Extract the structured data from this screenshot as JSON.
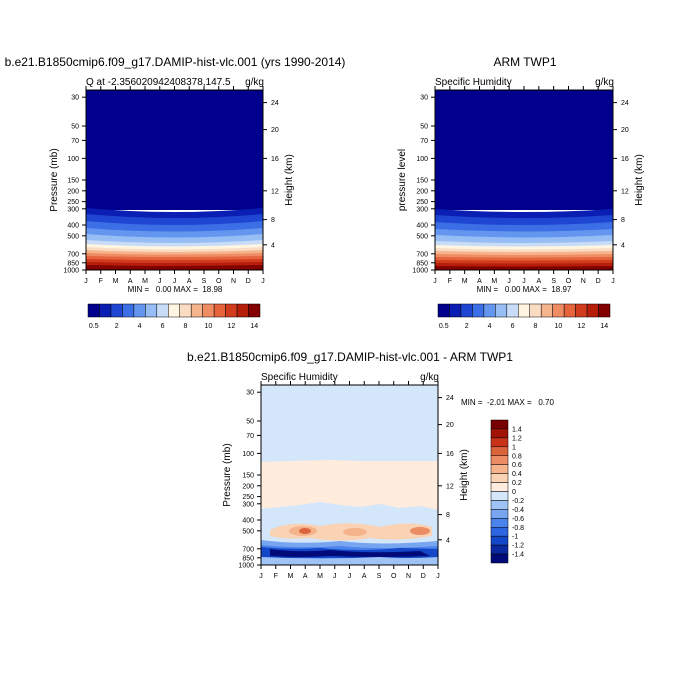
{
  "colors": {
    "abs": [
      "#00008c",
      "#0a1eb4",
      "#1e46d2",
      "#3c6ee6",
      "#6496f0",
      "#96bef5",
      "#c8dcf8",
      "#fff5e1",
      "#fadcc3",
      "#f5b48c",
      "#f08c64",
      "#e6643c",
      "#d23c1e",
      "#b41e0a",
      "#820000"
    ],
    "diff": [
      "#000a78",
      "#0a28a0",
      "#1446c8",
      "#2d64e1",
      "#4b82eb",
      "#78a5f0",
      "#a0c3f5",
      "#d4e6fa",
      "#ffecdc",
      "#fad2b4",
      "#f5b48c",
      "#eb8c64",
      "#dc643c",
      "#c83219",
      "#a01405",
      "#780000"
    ]
  },
  "chart_data": [
    {
      "type": "heatmap",
      "title": "b.e21.B1850cmip6.f09_g17.DAMIP-hist-vlc.001 (yrs 1990-2014)",
      "left_label": "Q at -2.356020942408378,147.5",
      "right_label": "g/kg",
      "xlabel": "",
      "ylabel": "Pressure (mb)",
      "y2label": "Height (km)",
      "x_ticks": [
        "J",
        "F",
        "M",
        "A",
        "M",
        "J",
        "J",
        "A",
        "S",
        "O",
        "N",
        "D",
        "J"
      ],
      "y_ticks": [
        "30",
        "50",
        "70",
        "100",
        "150",
        "200",
        "250",
        "300",
        "400",
        "500",
        "700",
        "850",
        "1000"
      ],
      "y2_ticks": [
        "24",
        "20",
        "16",
        "12",
        "8",
        "4"
      ],
      "stats": "MIN =   0.00 MAX =  18.98",
      "colorbar_labels": [
        "0.5",
        "2",
        "4",
        "6",
        "8",
        "10",
        "12",
        "14"
      ],
      "colorbar_levels": [
        0.5,
        1,
        2,
        3,
        4,
        5,
        6,
        7,
        8,
        9,
        10,
        11,
        12,
        13,
        14
      ],
      "data": {
        "pressure": [
          1000,
          850,
          700,
          500,
          400,
          300,
          250
        ],
        "q": [
          18.5,
          13.5,
          9.5,
          4.5,
          2.5,
          0.8,
          0.3
        ]
      }
    },
    {
      "type": "heatmap",
      "title": "ARM TWP1",
      "left_label": "Specific Humidity",
      "right_label": "g/kg",
      "xlabel": "",
      "ylabel": "pressure level",
      "y2label": "Height (km)",
      "x_ticks": [
        "J",
        "F",
        "M",
        "A",
        "M",
        "J",
        "J",
        "A",
        "S",
        "O",
        "N",
        "D",
        "J"
      ],
      "y_ticks": [
        "30",
        "50",
        "70",
        "100",
        "150",
        "200",
        "250",
        "300",
        "400",
        "500",
        "700",
        "850",
        "1000"
      ],
      "y2_ticks": [
        "24",
        "20",
        "16",
        "12",
        "8",
        "4"
      ],
      "stats": "MIN =   0.00 MAX =  18.97",
      "colorbar_labels": [
        "0.5",
        "2",
        "4",
        "6",
        "8",
        "10",
        "12",
        "14"
      ],
      "colorbar_levels": [
        0.5,
        1,
        2,
        3,
        4,
        5,
        6,
        7,
        8,
        9,
        10,
        11,
        12,
        13,
        14
      ],
      "data": {
        "pressure": [
          1000,
          850,
          700,
          500,
          400,
          300,
          250
        ],
        "q": [
          18.4,
          13.6,
          9.6,
          4.6,
          2.6,
          0.8,
          0.3
        ]
      }
    },
    {
      "type": "heatmap",
      "title": "b.e21.B1850cmip6.f09_g17.DAMIP-hist-vlc.001 - ARM TWP1",
      "left_label": "Specific Humidity",
      "right_label": "g/kg",
      "xlabel": "",
      "ylabel": "Pressure (mb)",
      "y2label": "Height (km)",
      "x_ticks": [
        "J",
        "F",
        "M",
        "A",
        "M",
        "J",
        "J",
        "A",
        "S",
        "O",
        "N",
        "D",
        "J"
      ],
      "y_ticks": [
        "30",
        "50",
        "70",
        "100",
        "150",
        "200",
        "250",
        "300",
        "400",
        "500",
        "700",
        "850",
        "1000"
      ],
      "y2_ticks": [
        "24",
        "20",
        "16",
        "12",
        "8",
        "4"
      ],
      "stats": "MIN =  -2.01 MAX =   0.70",
      "colorbar_labels": [
        "1.4",
        "1.2",
        "1",
        "0.8",
        "0.6",
        "0.4",
        "0.2",
        "0",
        "-0.2",
        "-0.4",
        "-0.6",
        "-0.8",
        "-1",
        "-1.2",
        "-1.4"
      ],
      "colorbar_levels": [
        -1.4,
        -1.2,
        -1,
        -0.8,
        -0.6,
        -0.4,
        -0.2,
        0,
        0.2,
        0.4,
        0.6,
        0.8,
        1,
        1.2,
        1.4
      ],
      "data": {
        "above_150mb": 0.0,
        "between_150_and_350mb": 0.1,
        "near_500mb": 0.3,
        "near_700mb": -0.6,
        "near_850mb": -1.4
      }
    }
  ]
}
